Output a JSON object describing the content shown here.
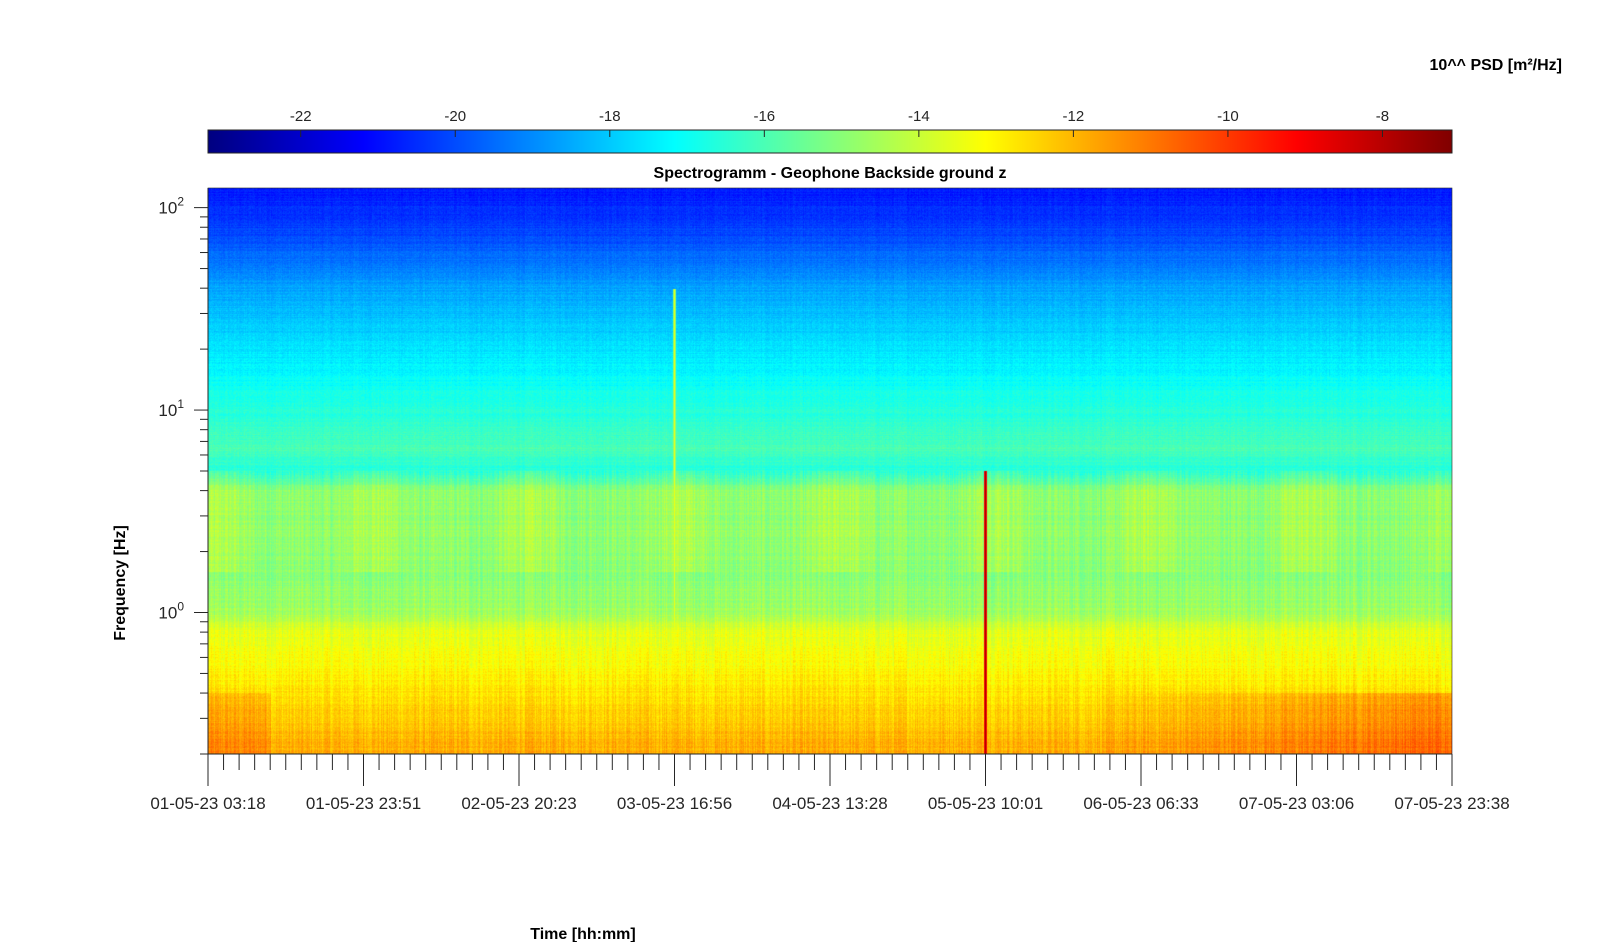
{
  "chart_data": {
    "type": "heatmap",
    "title": "Spectrogramm - Geophone Backside ground z",
    "xlabel": "Time [hh:mm]",
    "ylabel": "Frequency [Hz]",
    "colorbar": {
      "label": "10^^ PSD [m²/Hz]",
      "range": [
        -23.2,
        -7.1
      ],
      "ticks": [
        -22,
        -20,
        -18,
        -16,
        -14,
        -12,
        -10,
        -8
      ],
      "tick_labels": [
        "-22",
        "-20",
        "-18",
        "-16",
        "-14",
        "-12",
        "-10",
        "-8"
      ],
      "colormap": "jet",
      "location": "top"
    },
    "x_tick_labels": [
      "01-05-23 03:18",
      "01-05-23 23:51",
      "02-05-23 20:23",
      "03-05-23 16:56",
      "04-05-23 13:28",
      "05-05-23 10:01",
      "06-05-23 06:33",
      "07-05-23 03:06",
      "07-05-23 23:38"
    ],
    "x_range_days": [
      0,
      8.01
    ],
    "y_scale": "log",
    "y_range_hz": [
      0.2,
      125
    ],
    "y_tick_values": [
      1,
      10,
      100
    ],
    "y_tick_labels": [
      {
        "base": "10",
        "exp": "0"
      },
      {
        "base": "10",
        "exp": "1"
      },
      {
        "base": "10",
        "exp": "2"
      }
    ],
    "psd_profile": [
      {
        "hz": 0.2,
        "psd": -11.8
      },
      {
        "hz": 0.3,
        "psd": -12.3
      },
      {
        "hz": 0.5,
        "psd": -13.0
      },
      {
        "hz": 0.8,
        "psd": -13.6
      },
      {
        "hz": 1.0,
        "psd": -14.6
      },
      {
        "hz": 1.5,
        "psd": -15.0
      },
      {
        "hz": 2.5,
        "psd": -14.9
      },
      {
        "hz": 4.0,
        "psd": -14.9
      },
      {
        "hz": 5.0,
        "psd": -16.6
      },
      {
        "hz": 6.5,
        "psd": -16.0
      },
      {
        "hz": 10,
        "psd": -16.6
      },
      {
        "hz": 20,
        "psd": -17.6
      },
      {
        "hz": 40,
        "psd": -18.6
      },
      {
        "hz": 70,
        "psd": -20.0
      },
      {
        "hz": 125,
        "psd": -20.8
      }
    ],
    "events": [
      {
        "time_label": "05-05-23 10:01",
        "psd": -7.6,
        "fmax_hz": 5.0
      },
      {
        "time_label": "03-05-23 16:56",
        "psd": -13.4,
        "fmax_hz": 40
      }
    ],
    "grid": false
  }
}
